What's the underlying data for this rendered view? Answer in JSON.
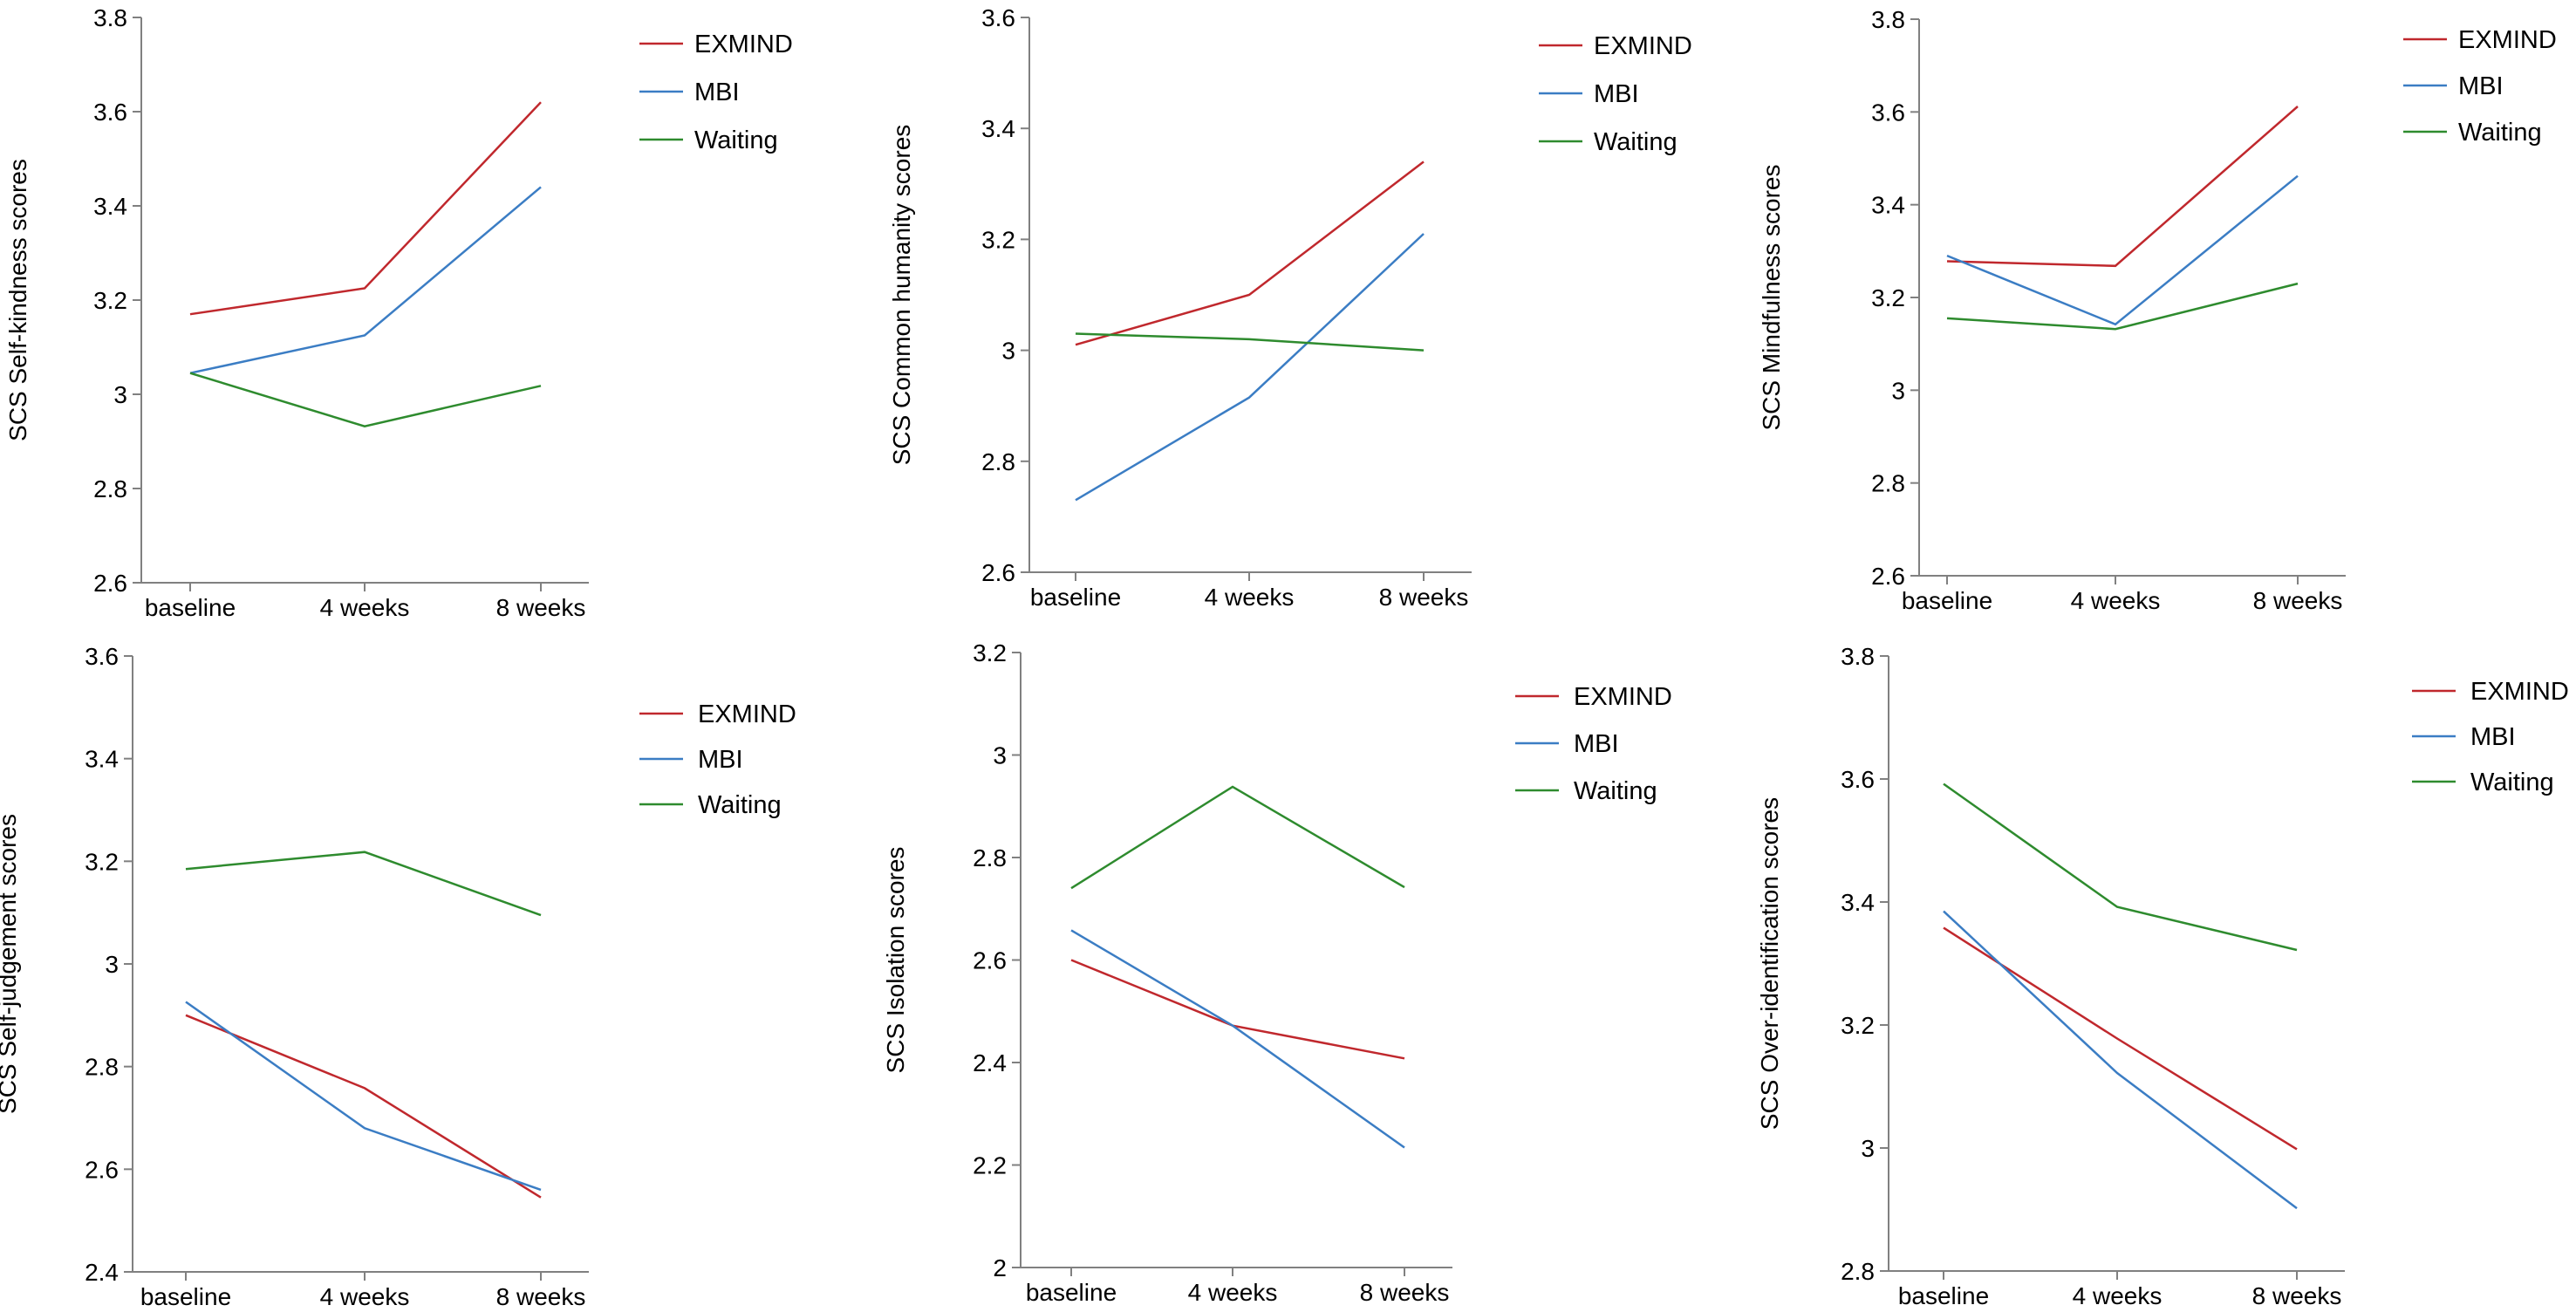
{
  "figure": {
    "categories": [
      "baseline",
      "4 weeks",
      "8 weeks"
    ],
    "series_colors": {
      "EXMIND": "#c0282d",
      "MBI": "#3b7dc4",
      "Waiting": "#2e8b2e"
    }
  },
  "chart_data": [
    {
      "type": "line",
      "ylabel": "SCS Self-kindness  scores",
      "ylim": [
        2.6,
        3.8
      ],
      "yticks": [
        2.6,
        2.8,
        3,
        3.2,
        3.4,
        3.6,
        3.8
      ],
      "ytick_labels": [
        "2.6",
        "2.8",
        "3",
        "3.2",
        "3.4",
        "3.6",
        "3.8"
      ],
      "categories": [
        "baseline",
        "4 weeks",
        "8 weeks"
      ],
      "legend": [
        "EXMIND",
        "MBI",
        "Waiting"
      ],
      "series": [
        {
          "name": "EXMIND",
          "color": "#c0282d",
          "values": [
            3.17,
            3.225,
            3.62
          ]
        },
        {
          "name": "MBI",
          "color": "#3b7dc4",
          "values": [
            3.045,
            3.125,
            3.44
          ]
        },
        {
          "name": "Waiting",
          "color": "#2e8b2e",
          "values": [
            3.045,
            2.932,
            3.018
          ]
        }
      ]
    },
    {
      "type": "line",
      "ylabel": "SCS Common  humanity scores",
      "ylim": [
        2.6,
        3.6
      ],
      "yticks": [
        2.6,
        2.8,
        3,
        3.2,
        3.4,
        3.6
      ],
      "ytick_labels": [
        "2.6",
        "2.8",
        "3",
        "3.2",
        "3.4",
        "3.6"
      ],
      "categories": [
        "baseline",
        "4 weeks",
        "8 weeks"
      ],
      "legend": [
        "EXMIND",
        "MBI",
        "Waiting"
      ],
      "series": [
        {
          "name": "EXMIND",
          "color": "#c0282d",
          "values": [
            3.01,
            3.1,
            3.34
          ]
        },
        {
          "name": "MBI",
          "color": "#3b7dc4",
          "values": [
            2.73,
            2.915,
            3.21
          ]
        },
        {
          "name": "Waiting",
          "color": "#2e8b2e",
          "values": [
            3.03,
            3.02,
            3.0
          ]
        }
      ]
    },
    {
      "type": "line",
      "ylabel": "SCS Mindfulness  scores",
      "ylim": [
        2.6,
        3.8
      ],
      "yticks": [
        2.6,
        2.8,
        3,
        3.2,
        3.4,
        3.6,
        3.8
      ],
      "ytick_labels": [
        "2.6",
        "2.8",
        "3",
        "3.2",
        "3.4",
        "3.6",
        "3.8"
      ],
      "categories": [
        "baseline",
        "4 weeks",
        "8 weeks"
      ],
      "legend": [
        "EXMIND",
        "MBI",
        "Waiting"
      ],
      "series": [
        {
          "name": "EXMIND",
          "color": "#c0282d",
          "values": [
            3.278,
            3.268,
            3.612
          ]
        },
        {
          "name": "MBI",
          "color": "#3b7dc4",
          "values": [
            3.29,
            3.142,
            3.462
          ]
        },
        {
          "name": "Waiting",
          "color": "#2e8b2e",
          "values": [
            3.155,
            3.132,
            3.23
          ]
        }
      ]
    },
    {
      "type": "line",
      "ylabel": "SCS Self-judgement  scores",
      "ylim": [
        2.4,
        3.6
      ],
      "yticks": [
        2.4,
        2.6,
        2.8,
        3,
        3.2,
        3.4,
        3.6
      ],
      "ytick_labels": [
        "2.4",
        "2.6",
        "2.8",
        "3",
        "3.2",
        "3.4",
        "3.6"
      ],
      "categories": [
        "baseline",
        "4 weeks",
        "8 weeks"
      ],
      "legend": [
        "EXMIND",
        "MBI",
        "Waiting"
      ],
      "series": [
        {
          "name": "EXMIND",
          "color": "#c0282d",
          "values": [
            2.9,
            2.758,
            2.545
          ]
        },
        {
          "name": "MBI",
          "color": "#3b7dc4",
          "values": [
            2.926,
            2.68,
            2.56
          ]
        },
        {
          "name": "Waiting",
          "color": "#2e8b2e",
          "values": [
            3.185,
            3.218,
            3.095
          ]
        }
      ]
    },
    {
      "type": "line",
      "ylabel": "SCS Isolation scores",
      "ylim": [
        2.0,
        3.2
      ],
      "yticks": [
        2,
        2.2,
        2.4,
        2.6,
        2.8,
        3,
        3.2
      ],
      "ytick_labels": [
        "2",
        "2.2",
        "2.4",
        "2.6",
        "2.8",
        "3",
        "3.2"
      ],
      "categories": [
        "baseline",
        "4 weeks",
        "8 weeks"
      ],
      "legend": [
        "EXMIND",
        "MBI",
        "Waiting"
      ],
      "series": [
        {
          "name": "EXMIND",
          "color": "#c0282d",
          "values": [
            2.6,
            2.472,
            2.408
          ]
        },
        {
          "name": "MBI",
          "color": "#3b7dc4",
          "values": [
            2.658,
            2.472,
            2.234
          ]
        },
        {
          "name": "Waiting",
          "color": "#2e8b2e",
          "values": [
            2.74,
            2.938,
            2.742
          ]
        }
      ]
    },
    {
      "type": "line",
      "ylabel": "SCS Over-identification  scores",
      "ylim": [
        2.8,
        3.8
      ],
      "yticks": [
        2.8,
        3,
        3.2,
        3.4,
        3.6,
        3.8
      ],
      "ytick_labels": [
        "2.8",
        "3",
        "3.2",
        "3.4",
        "3.6",
        "3.8"
      ],
      "categories": [
        "baseline",
        "4 weeks",
        "8 weeks"
      ],
      "legend": [
        "EXMIND",
        "MBI",
        "Waiting"
      ],
      "series": [
        {
          "name": "EXMIND",
          "color": "#c0282d",
          "values": [
            3.358,
            3.178,
            2.998
          ]
        },
        {
          "name": "MBI",
          "color": "#3b7dc4",
          "values": [
            3.385,
            3.122,
            2.902
          ]
        },
        {
          "name": "Waiting",
          "color": "#2e8b2e",
          "values": [
            3.592,
            3.392,
            3.322
          ]
        }
      ]
    }
  ]
}
